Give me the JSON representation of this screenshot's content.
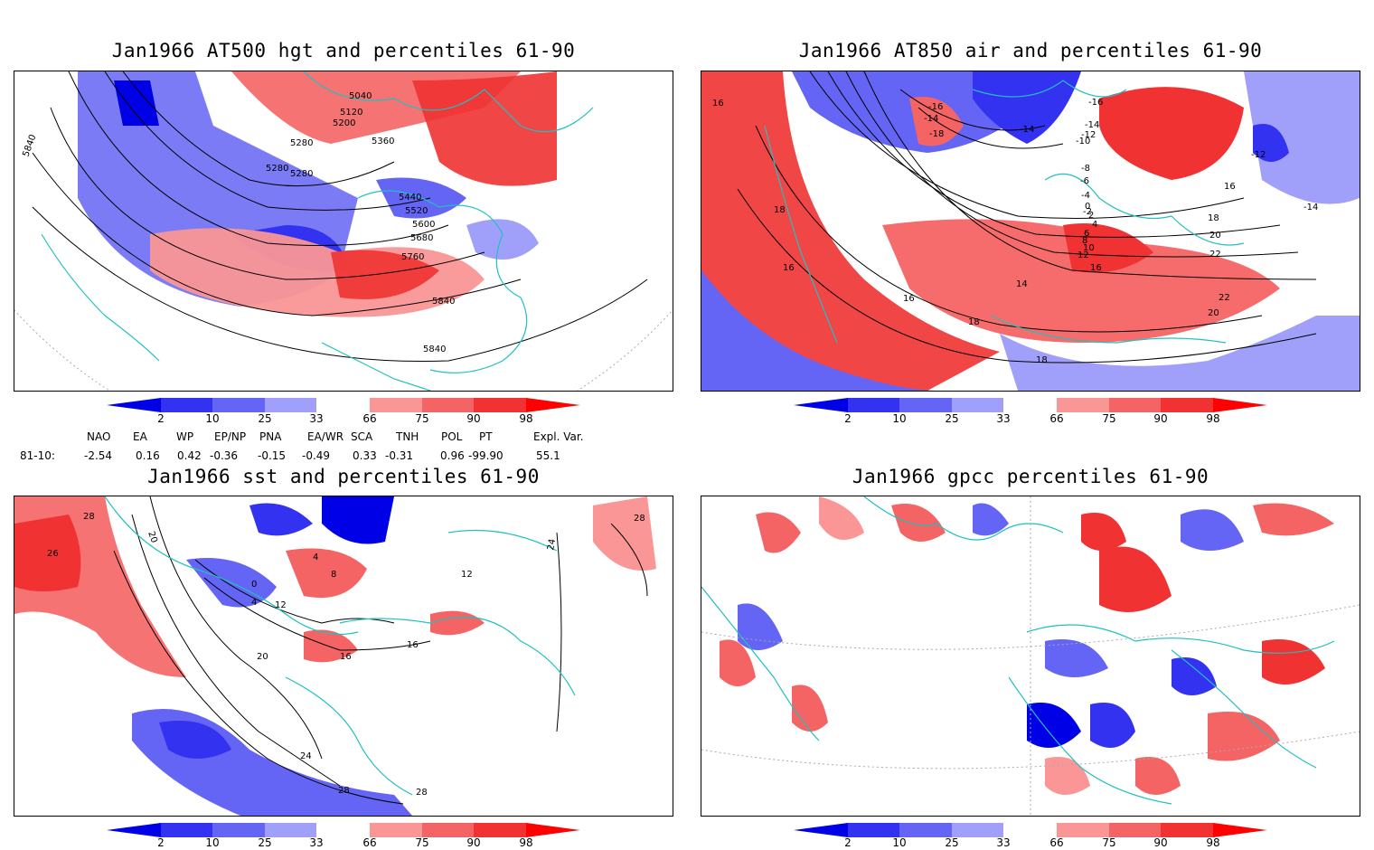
{
  "panels": [
    {
      "title": "Jan1966 AT500 hgt and percentiles 61-90",
      "contour_labels": [
        "5040",
        "5120",
        "5200",
        "5280",
        "5280",
        "5280",
        "5360",
        "5440",
        "5520",
        "5600",
        "5680",
        "5760",
        "5840",
        "5840",
        "5840"
      ]
    },
    {
      "title": "Jan1966 AT850 air and percentiles 61-90",
      "contour_labels": [
        "16",
        "18",
        "16",
        "16",
        "18",
        "14",
        "12",
        "10",
        "-14",
        "-16",
        "-14",
        "-12",
        "-10",
        "-8",
        "-6",
        "-4",
        "-2",
        "0",
        "2",
        "4",
        "6",
        "8",
        "16",
        "18",
        "20",
        "22",
        "22",
        "20",
        "18",
        "16",
        "-12",
        "-14",
        "-16",
        "-18",
        "-14"
      ]
    },
    {
      "title": "Jan1966 sst and percentiles 61-90",
      "contour_labels": [
        "28",
        "26",
        "20",
        "0",
        "4",
        "12",
        "20",
        "16",
        "4",
        "8",
        "16",
        "24",
        "28",
        "28",
        "24",
        "28",
        "12"
      ]
    },
    {
      "title": "Jan1966 gpcc percentiles 61-90",
      "contour_labels": []
    }
  ],
  "colorbar": {
    "labels": [
      "2",
      "10",
      "25",
      "33",
      "66",
      "75",
      "90",
      "98"
    ],
    "colors": [
      "#0000e6",
      "#3232f0",
      "#6464f5",
      "#a0a0fa",
      "#ffffff",
      "#fa9696",
      "#f56464",
      "#f03232",
      "#ff0000"
    ]
  },
  "indices": {
    "headers": [
      "NAO",
      "EA",
      "WP",
      "EP/NP",
      "PNA",
      "EA/WR",
      "SCA",
      "TNH",
      "POL",
      "PT",
      "Expl. Var."
    ],
    "row_label": "81-10:",
    "values": [
      "-2.54",
      "0.16",
      "0.42",
      "-0.36",
      "-0.15",
      "-0.49",
      "0.33",
      "-0.31",
      "0.96",
      "-99.90",
      "55.1"
    ]
  }
}
